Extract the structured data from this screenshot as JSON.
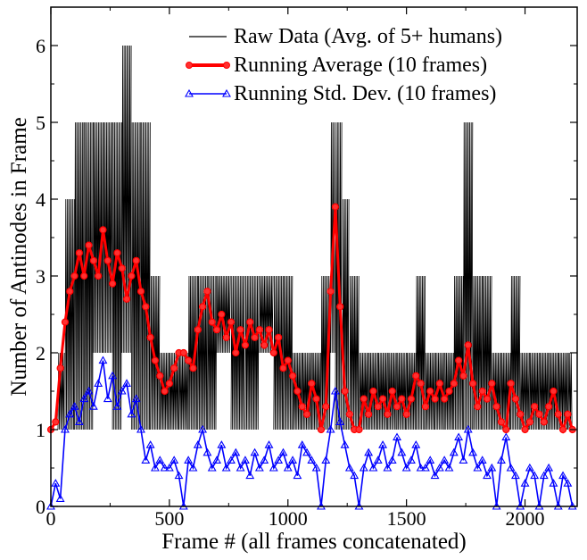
{
  "chart_data": {
    "type": "line",
    "title": "",
    "xlabel": "Frame # (all frames concatenated)",
    "ylabel": "Number of Antinodes in Frame",
    "xlim": [
      0,
      2220
    ],
    "ylim": [
      0,
      6.5
    ],
    "xticks": [
      0,
      500,
      1000,
      1500,
      2000
    ],
    "yticks": [
      0,
      1,
      2,
      3,
      4,
      5,
      6
    ],
    "grid": false,
    "legend_position": "top-right",
    "series": [
      {
        "name": "Raw Data (Avg. of 5+ humans)",
        "style": "line",
        "color": "#000000",
        "x": [
          0,
          30,
          60,
          100,
          140,
          180,
          220,
          260,
          300,
          340,
          380,
          420,
          460,
          500,
          540,
          580,
          620,
          660,
          700,
          760,
          820,
          880,
          940,
          980,
          1020,
          1060,
          1100,
          1140,
          1180,
          1200,
          1230,
          1260,
          1300,
          1340,
          1380,
          1420,
          1460,
          1500,
          1540,
          1580,
          1620,
          1660,
          1700,
          1740,
          1780,
          1820,
          1860,
          1900,
          1940,
          1980,
          2020,
          2060,
          2100,
          2140,
          2180,
          2200
        ],
        "low": [
          1,
          1,
          1,
          1,
          1,
          2,
          2,
          1,
          2,
          1,
          1,
          1,
          1,
          1,
          1,
          1,
          1,
          1,
          2,
          1,
          1,
          2,
          1,
          1,
          1,
          1,
          1,
          1,
          2,
          1,
          1,
          1,
          1,
          1,
          1,
          1,
          1,
          1,
          1,
          1,
          1,
          1,
          1,
          1,
          1,
          1,
          1,
          1,
          1,
          1,
          1,
          1,
          1,
          1,
          1,
          1
        ],
        "high": [
          1,
          2,
          4,
          5,
          5,
          5,
          5,
          5,
          6,
          5,
          5,
          3,
          2,
          2,
          2,
          3,
          3,
          3,
          3,
          3,
          3,
          3,
          3,
          3,
          2,
          2,
          2,
          3,
          5,
          5,
          4,
          3,
          2,
          2,
          2,
          2,
          2,
          2,
          3,
          2,
          2,
          2,
          3,
          5,
          3,
          3,
          2,
          2,
          3,
          2,
          2,
          2,
          2,
          2,
          2,
          2
        ]
      },
      {
        "name": "Running Average (10 frames)",
        "style": "line-with-circle-markers",
        "color": "#ff0000",
        "x": [
          0,
          20,
          40,
          60,
          80,
          100,
          120,
          140,
          160,
          180,
          200,
          220,
          240,
          260,
          280,
          300,
          320,
          340,
          360,
          380,
          400,
          420,
          440,
          460,
          480,
          500,
          520,
          540,
          560,
          580,
          600,
          620,
          640,
          660,
          680,
          700,
          720,
          740,
          760,
          780,
          800,
          820,
          840,
          860,
          880,
          900,
          920,
          940,
          960,
          980,
          1000,
          1020,
          1040,
          1060,
          1080,
          1100,
          1120,
          1140,
          1160,
          1180,
          1200,
          1220,
          1240,
          1260,
          1280,
          1300,
          1320,
          1340,
          1360,
          1380,
          1400,
          1420,
          1440,
          1460,
          1480,
          1500,
          1520,
          1540,
          1560,
          1580,
          1600,
          1620,
          1640,
          1660,
          1680,
          1700,
          1720,
          1740,
          1760,
          1780,
          1800,
          1820,
          1840,
          1860,
          1880,
          1900,
          1920,
          1940,
          1960,
          1980,
          2000,
          2020,
          2040,
          2060,
          2080,
          2100,
          2120,
          2140,
          2160,
          2180,
          2200
        ],
        "values": [
          1.0,
          1.1,
          1.8,
          2.4,
          2.8,
          3.0,
          3.3,
          3.0,
          3.4,
          3.2,
          3.0,
          3.6,
          3.2,
          2.9,
          3.3,
          3.1,
          2.7,
          3.0,
          3.2,
          2.8,
          2.6,
          2.2,
          1.9,
          1.7,
          1.5,
          1.6,
          1.8,
          2.0,
          2.0,
          1.9,
          1.8,
          2.3,
          2.6,
          2.8,
          2.4,
          2.3,
          2.5,
          2.2,
          2.4,
          2.0,
          2.3,
          2.1,
          2.4,
          2.2,
          2.3,
          2.1,
          2.3,
          2.0,
          2.2,
          1.8,
          1.9,
          1.7,
          1.5,
          1.3,
          1.2,
          1.6,
          1.4,
          1.0,
          1.3,
          2.8,
          3.9,
          2.6,
          1.5,
          1.2,
          1.0,
          1.0,
          1.4,
          1.2,
          1.5,
          1.3,
          1.4,
          1.2,
          1.5,
          1.3,
          1.4,
          1.2,
          1.4,
          1.7,
          1.6,
          1.3,
          1.5,
          1.4,
          1.6,
          1.4,
          1.5,
          1.6,
          1.9,
          1.7,
          2.1,
          1.6,
          1.3,
          1.5,
          1.4,
          1.6,
          1.3,
          1.1,
          1.0,
          1.6,
          1.4,
          1.2,
          1.0,
          1.1,
          1.3,
          1.2,
          1.1,
          1.3,
          1.5,
          1.2,
          1.0,
          1.2,
          1.0
        ]
      },
      {
        "name": "Running Std. Dev. (10 frames)",
        "style": "line-with-triangle-markers",
        "color": "#0000ff",
        "x": [
          0,
          20,
          40,
          60,
          80,
          100,
          120,
          140,
          160,
          180,
          200,
          220,
          240,
          260,
          280,
          300,
          320,
          340,
          360,
          380,
          400,
          420,
          440,
          460,
          480,
          500,
          520,
          540,
          560,
          580,
          600,
          620,
          640,
          660,
          680,
          700,
          720,
          740,
          760,
          780,
          800,
          820,
          840,
          860,
          880,
          900,
          920,
          940,
          960,
          980,
          1000,
          1020,
          1040,
          1060,
          1080,
          1100,
          1120,
          1140,
          1160,
          1180,
          1200,
          1220,
          1240,
          1260,
          1280,
          1300,
          1320,
          1340,
          1360,
          1380,
          1400,
          1420,
          1440,
          1460,
          1480,
          1500,
          1520,
          1540,
          1560,
          1580,
          1600,
          1620,
          1640,
          1660,
          1680,
          1700,
          1720,
          1740,
          1760,
          1780,
          1800,
          1820,
          1840,
          1860,
          1880,
          1900,
          1920,
          1940,
          1960,
          1980,
          2000,
          2020,
          2040,
          2060,
          2080,
          2100,
          2120,
          2140,
          2160,
          2180,
          2200
        ],
        "values": [
          0.0,
          0.3,
          0.1,
          1.0,
          1.2,
          1.3,
          1.1,
          1.4,
          1.5,
          1.3,
          1.6,
          1.9,
          1.4,
          1.7,
          1.3,
          1.5,
          1.6,
          1.2,
          1.4,
          1.0,
          0.6,
          0.8,
          0.5,
          0.6,
          0.5,
          0.5,
          0.6,
          0.4,
          0.0,
          0.6,
          0.5,
          0.8,
          1.0,
          0.7,
          0.5,
          0.6,
          0.8,
          0.5,
          0.6,
          0.7,
          0.5,
          0.6,
          0.4,
          0.7,
          0.5,
          0.6,
          0.8,
          0.5,
          0.6,
          0.7,
          0.5,
          0.6,
          0.4,
          0.8,
          0.7,
          0.6,
          0.5,
          0.0,
          0.6,
          1.0,
          1.5,
          1.1,
          0.8,
          0.5,
          0.4,
          0.0,
          0.5,
          0.7,
          0.5,
          0.6,
          0.8,
          0.5,
          0.6,
          0.9,
          0.7,
          0.5,
          0.6,
          0.8,
          0.5,
          0.5,
          0.6,
          0.4,
          0.5,
          0.6,
          0.5,
          0.7,
          0.9,
          0.6,
          1.0,
          0.7,
          0.5,
          0.6,
          0.4,
          0.5,
          0.0,
          0.6,
          0.9,
          0.5,
          0.4,
          0.0,
          0.3,
          0.5,
          0.4,
          0.0,
          0.4,
          0.5,
          0.3,
          0.0,
          0.4,
          0.3,
          0.0
        ]
      }
    ]
  }
}
